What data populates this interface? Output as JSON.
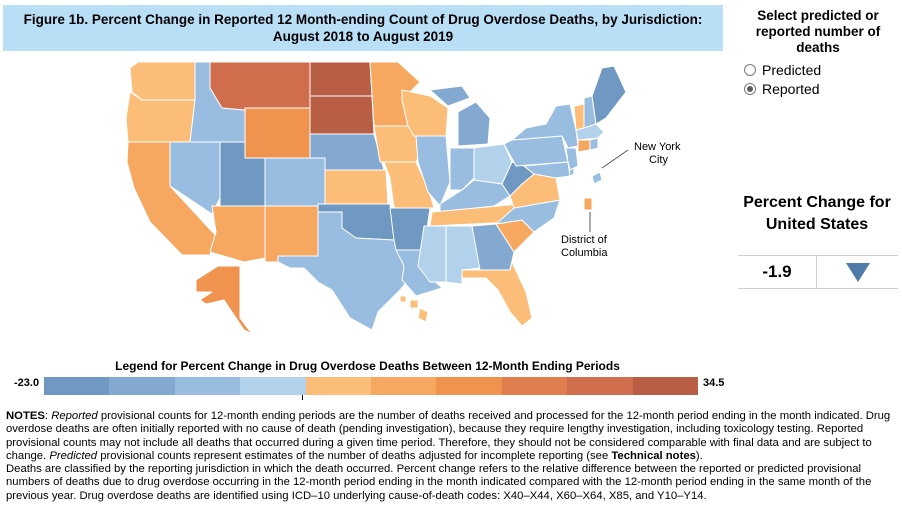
{
  "title": {
    "line1": "Figure 1b. Percent Change in Reported 12 Month-ending Count of Drug Overdose Deaths, by Jurisdiction:",
    "line2": "August 2018 to August 2019"
  },
  "selector": {
    "title": "Select predicted or reported number of deaths",
    "options": [
      {
        "label": "Predicted",
        "selected": false
      },
      {
        "label": "Reported",
        "selected": true
      }
    ]
  },
  "us_change": {
    "title": "Percent Change for United States",
    "value": "-1.9",
    "direction": "down",
    "arrow_color": "#4f7ca8"
  },
  "map": {
    "labels": {
      "new_york_city": [
        "New York",
        "City"
      ],
      "district_of_columbia": [
        "District of",
        "Columbia"
      ]
    },
    "colors": {
      "c1": "#6f98c2",
      "c2": "#83a9d0",
      "c3": "#99bde0",
      "c4": "#b1d2ea",
      "c5": "#fbbd77",
      "c6": "#f6a860",
      "c7": "#f0934f",
      "c8": "#e07e4f",
      "c9": "#cf6d4c",
      "c10": "#b85e45"
    },
    "jurisdictions": {
      "WA": "c5",
      "OR": "c5",
      "CA": "c6",
      "NV": "c3",
      "ID": "c3",
      "MT": "c9",
      "WY": "c7",
      "UT": "c1",
      "AZ": "c6",
      "CO": "c3",
      "NM": "c6",
      "ND": "c10",
      "SD": "c10",
      "NE": "c2",
      "KS": "c5",
      "OK": "c1",
      "TX": "c3",
      "MN": "c6",
      "IA": "c5",
      "MO": "c5",
      "AR": "c1",
      "LA": "c3",
      "WI": "c5",
      "IL": "c3",
      "MS": "c4",
      "MI": "c2",
      "IN": "c3",
      "OH": "c4",
      "KY": "c3",
      "TN": "c5",
      "AL": "c4",
      "GA": "c2",
      "FL": "c5",
      "SC": "c6",
      "NC": "c3",
      "VA": "c5",
      "WV": "c1",
      "PA": "c3",
      "NY": "c3",
      "VT": "c5",
      "NH": "c3",
      "ME": "c1",
      "MA": "c4",
      "CT": "c6",
      "RI": "c3",
      "NJ": "c3",
      "DE": "c3",
      "MD": "c3",
      "AK": "c7",
      "HI": "c5",
      "NYC": "c3",
      "DC": "c6"
    }
  },
  "legend": {
    "title": "Legend for Percent Change in Drug Overdose Deaths Between 12-Month Ending Periods",
    "min": "-23.0",
    "max": "34.5",
    "bins": [
      "#6f98c2",
      "#83a9d0",
      "#99bde0",
      "#b1d2ea",
      "#fbbd77",
      "#f6a860",
      "#f0934f",
      "#e07e4f",
      "#cf6d4c",
      "#b85e45"
    ]
  },
  "notes": {
    "p1": {
      "label": "NOTES",
      "sep": ": ",
      "em1": "Reported",
      "t1": " provisional counts for 12-month ending periods are the number of deaths received and processed for the 12-month period ending in the month indicated. Drug overdose deaths are often initially reported with no cause of death (pending investigation), because they require lengthy investigation, including toxicology testing. Reported provisional counts may not include all deaths that occurred during a given time period. Therefore, they should not be considered comparable with final data and are subject to change. ",
      "em2": "Predicted",
      "t2": " provisional counts represent estimates of the number of deaths adjusted for incomplete reporting (see ",
      "link": "Technical notes",
      "t3": ")."
    },
    "p2": "Deaths are classified by the reporting jurisdiction in which the death occurred. Percent change refers to the relative difference between the reported or predicted provisional numbers of deaths due to drug overdose occurring in the 12-month period ending in the month indicated compared with the 12-month period ending in the same month of the previous year. Drug overdose deaths are identified using ICD–10 underlying cause-of-death codes: X40–X44, X60–X64, X85, and Y10–Y14."
  }
}
